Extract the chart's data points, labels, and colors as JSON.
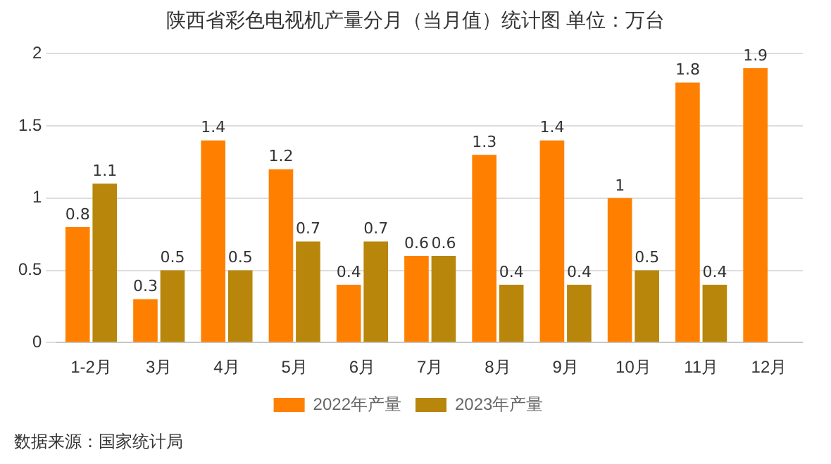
{
  "chart_data": {
    "type": "bar",
    "title": "陕西省彩色电视机产量分月（当月值）统计图 单位：万台",
    "categories": [
      "1-2月",
      "3月",
      "4月",
      "5月",
      "6月",
      "7月",
      "8月",
      "9月",
      "10月",
      "11月",
      "12月"
    ],
    "series": [
      {
        "name": "2022年产量",
        "color": "#ff8000",
        "values": [
          0.8,
          0.3,
          1.4,
          1.2,
          0.4,
          0.6,
          1.3,
          1.4,
          1,
          1.8,
          1.9
        ]
      },
      {
        "name": "2023年产量",
        "color": "#b8860b",
        "values": [
          1.1,
          0.5,
          0.5,
          0.7,
          0.7,
          0.6,
          0.4,
          0.4,
          0.5,
          0.4,
          null
        ]
      }
    ],
    "ylim": [
      0,
      2
    ],
    "yticks": [
      0,
      0.5,
      1,
      1.5,
      2
    ],
    "grid": "y",
    "legend": "bottom",
    "data_labels": true,
    "annotations": [
      "数据来源：国家统计局"
    ]
  }
}
